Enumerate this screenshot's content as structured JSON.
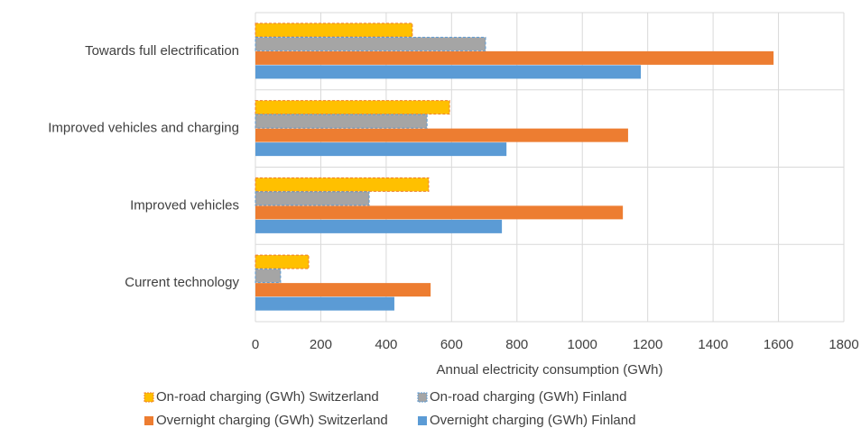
{
  "chart_data": {
    "type": "hbar",
    "categories": [
      "Towards full electrification",
      "Improved vehicles and charging",
      "Improved vehicles",
      "Current technology"
    ],
    "series": [
      {
        "name": "On-road charging (GWh) Switzerland",
        "color": "#ffc000",
        "border": "#ed7d31",
        "values": [
          480,
          594,
          530,
          163
        ]
      },
      {
        "name": "On-road charging (GWh) Finland",
        "color": "#a5a5a5",
        "border": "#5b9bd5",
        "values": [
          704,
          525,
          348,
          77
        ]
      },
      {
        "name": "Overnight charging (GWh) Switzerland",
        "color": "#ed7d31",
        "values": [
          1585,
          1140,
          1124,
          536
        ]
      },
      {
        "name": "Overnight charging (GWh) Finland",
        "color": "#5b9bd5",
        "values": [
          1179,
          768,
          754,
          425
        ]
      }
    ],
    "xlabel": "Annual electricity consumption (GWh)",
    "xlim": [
      0,
      1800
    ],
    "xticks": [
      0,
      200,
      400,
      600,
      800,
      1000,
      1200,
      1400,
      1600,
      1800
    ],
    "grid": true,
    "legend": "bottom"
  }
}
